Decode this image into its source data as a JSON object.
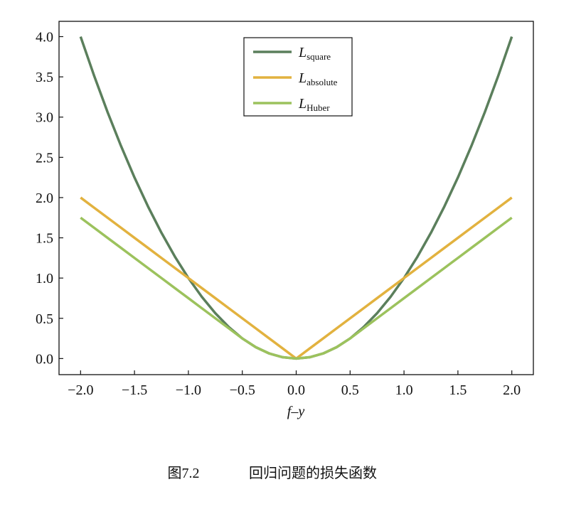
{
  "chart_data": {
    "type": "line",
    "x_label": "f–y",
    "caption_label": "图7.2",
    "caption": "回归问题的损失函数",
    "legend_prefix": "L",
    "legend": "upper center",
    "x": [
      -2,
      -1.875,
      -1.75,
      -1.625,
      -1.5,
      -1.375,
      -1.25,
      -1.125,
      -1,
      -0.875,
      -0.75,
      -0.625,
      -0.5,
      -0.375,
      -0.25,
      -0.125,
      0,
      0.125,
      0.25,
      0.375,
      0.5,
      0.625,
      0.75,
      0.875,
      1,
      1.125,
      1.25,
      1.375,
      1.5,
      1.625,
      1.75,
      1.875,
      2
    ],
    "series": [
      {
        "name": "square",
        "color": "#5b7f5c",
        "values": [
          4,
          3.516,
          3.063,
          2.641,
          2.25,
          1.891,
          1.563,
          1.266,
          1,
          0.766,
          0.563,
          0.391,
          0.25,
          0.141,
          0.063,
          0.016,
          0,
          0.016,
          0.063,
          0.141,
          0.25,
          0.391,
          0.563,
          0.766,
          1,
          1.266,
          1.563,
          1.891,
          2.25,
          2.641,
          3.063,
          3.516,
          4
        ]
      },
      {
        "name": "absolute",
        "color": "#e2b23f",
        "values": [
          2,
          1.875,
          1.75,
          1.625,
          1.5,
          1.375,
          1.25,
          1.125,
          1,
          0.875,
          0.75,
          0.625,
          0.5,
          0.375,
          0.25,
          0.125,
          0,
          0.125,
          0.25,
          0.375,
          0.5,
          0.625,
          0.75,
          0.875,
          1,
          1.125,
          1.25,
          1.375,
          1.5,
          1.625,
          1.75,
          1.875,
          2
        ]
      },
      {
        "name": "Huber",
        "color": "#9cc25d",
        "values": [
          1.75,
          1.625,
          1.5,
          1.375,
          1.25,
          1.125,
          1,
          0.875,
          0.75,
          0.625,
          0.5,
          0.375,
          0.25,
          0.141,
          0.063,
          0.016,
          0,
          0.016,
          0.063,
          0.141,
          0.25,
          0.375,
          0.5,
          0.625,
          0.75,
          0.875,
          1,
          1.125,
          1.25,
          1.375,
          1.5,
          1.625,
          1.75
        ]
      }
    ],
    "xlim": [
      -2.2,
      2.2
    ],
    "ylim": [
      -0.2,
      4.19
    ],
    "xticks": [
      {
        "value": -2,
        "label": "−2.0"
      },
      {
        "value": -1.5,
        "label": "−1.5"
      },
      {
        "value": -1,
        "label": "−1.0"
      },
      {
        "value": -0.5,
        "label": "−0.5"
      },
      {
        "value": 0,
        "label": "0.0"
      },
      {
        "value": 0.5,
        "label": "0.5"
      },
      {
        "value": 1,
        "label": "1.0"
      },
      {
        "value": 1.5,
        "label": "1.5"
      },
      {
        "value": 2,
        "label": "2.0"
      }
    ],
    "yticks": [
      {
        "value": 0,
        "label": "0.0"
      },
      {
        "value": 0.5,
        "label": "0.5"
      },
      {
        "value": 1,
        "label": "1.0"
      },
      {
        "value": 1.5,
        "label": "1.5"
      },
      {
        "value": 2,
        "label": "2.0"
      },
      {
        "value": 2.5,
        "label": "2.5"
      },
      {
        "value": 3,
        "label": "3.0"
      },
      {
        "value": 3.5,
        "label": "3.5"
      },
      {
        "value": 4,
        "label": "4.0"
      }
    ],
    "grid": false
  }
}
